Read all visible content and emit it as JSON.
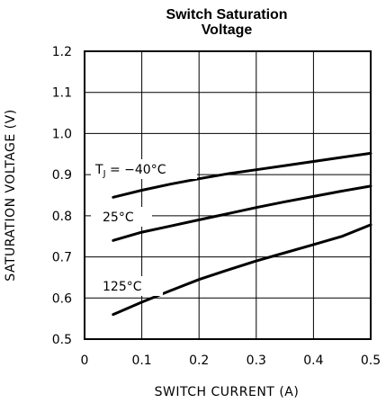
{
  "chart_data": {
    "type": "line",
    "title_line1": "Switch Saturation",
    "title_line2": "Voltage",
    "xlabel": "SWITCH CURRENT (A)",
    "ylabel": "SATURATION VOLTAGE (V)",
    "xlim": [
      0,
      0.5
    ],
    "ylim": [
      0.5,
      1.2
    ],
    "x_ticks": [
      "0",
      "0.1",
      "0.2",
      "0.3",
      "0.4",
      "0.5"
    ],
    "y_ticks": [
      "0.5",
      "0.6",
      "0.7",
      "0.8",
      "0.9",
      "1.0",
      "1.1",
      "1.2"
    ],
    "grid": true,
    "series": [
      {
        "label_prefix": "T",
        "label_sub": "J",
        "label_main": " = −40°C",
        "x": [
          0.05,
          0.1,
          0.15,
          0.2,
          0.25,
          0.3,
          0.35,
          0.4,
          0.45,
          0.5
        ],
        "y": [
          0.845,
          0.862,
          0.877,
          0.89,
          0.902,
          0.912,
          0.922,
          0.932,
          0.942,
          0.952
        ]
      },
      {
        "label_main": "25°C",
        "x": [
          0.05,
          0.1,
          0.15,
          0.2,
          0.25,
          0.3,
          0.35,
          0.4,
          0.45,
          0.5
        ],
        "y": [
          0.74,
          0.76,
          0.775,
          0.79,
          0.805,
          0.82,
          0.834,
          0.847,
          0.86,
          0.872
        ]
      },
      {
        "label_main": "125°C",
        "x": [
          0.05,
          0.1,
          0.15,
          0.2,
          0.25,
          0.3,
          0.35,
          0.4,
          0.45,
          0.5
        ],
        "y": [
          0.56,
          0.59,
          0.618,
          0.645,
          0.668,
          0.69,
          0.71,
          0.73,
          0.75,
          0.778
        ]
      }
    ]
  }
}
